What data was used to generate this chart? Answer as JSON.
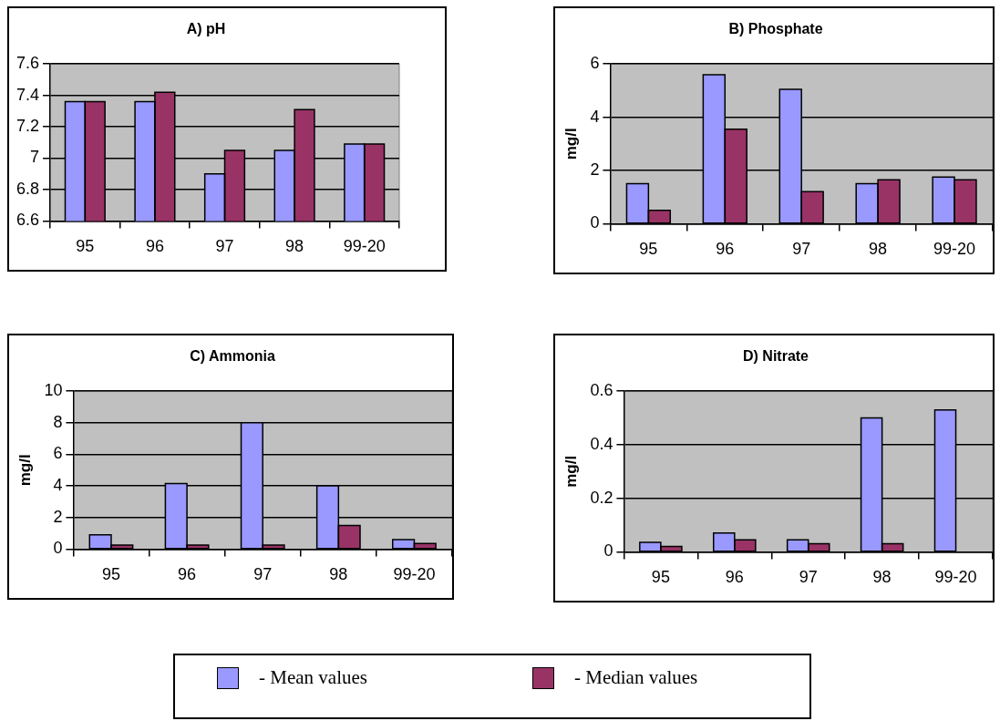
{
  "chart_data": [
    {
      "type": "bar",
      "title": "A) pH",
      "categories": [
        "95",
        "96",
        "97",
        "98",
        "99-20"
      ],
      "ylim": [
        6.6,
        7.6
      ],
      "yticks": [
        6.6,
        6.8,
        7,
        7.2,
        7.4,
        7.6
      ],
      "grid": "y",
      "legend": "bottom",
      "series": [
        {
          "name": "- Mean values",
          "color": "#9999ff",
          "values": [
            7.36,
            7.36,
            6.9,
            7.05,
            7.09
          ]
        },
        {
          "name": "- Median values",
          "color": "#993366",
          "values": [
            7.36,
            7.42,
            7.05,
            7.31,
            7.09
          ]
        }
      ]
    },
    {
      "type": "bar",
      "title": "B) Phosphate",
      "ylabel": "mg/l",
      "categories": [
        "95",
        "96",
        "97",
        "98",
        "99-20"
      ],
      "ylim": [
        0,
        6
      ],
      "yticks": [
        0,
        2,
        4,
        6
      ],
      "grid": "y",
      "series": [
        {
          "color": "#9999ff",
          "values": [
            1.5,
            5.6,
            5.05,
            1.5,
            1.75
          ]
        },
        {
          "color": "#993366",
          "values": [
            0.5,
            3.55,
            1.2,
            1.65,
            1.65
          ]
        }
      ]
    },
    {
      "type": "bar",
      "title": "C) Ammonia",
      "ylabel": "mg/l",
      "categories": [
        "95",
        "96",
        "97",
        "98",
        "99-20"
      ],
      "ylim": [
        0,
        10
      ],
      "yticks": [
        0,
        2,
        4,
        6,
        8,
        10
      ],
      "grid": "y",
      "series": [
        {
          "color": "#9999ff",
          "values": [
            0.9,
            4.15,
            8.0,
            4.0,
            0.6
          ]
        },
        {
          "color": "#993366",
          "values": [
            0.25,
            0.25,
            0.25,
            1.5,
            0.35
          ]
        }
      ]
    },
    {
      "type": "bar",
      "title": "D) Nitrate",
      "ylabel": "mg/l",
      "categories": [
        "95",
        "96",
        "97",
        "98",
        "99-20"
      ],
      "ylim": [
        0,
        0.6
      ],
      "yticks": [
        0,
        0.2,
        0.4,
        0.6
      ],
      "grid": "y",
      "series": [
        {
          "color": "#9999ff",
          "values": [
            0.035,
            0.07,
            0.045,
            0.5,
            0.53
          ]
        },
        {
          "color": "#993366",
          "values": [
            0.02,
            0.045,
            0.03,
            0.03,
            null
          ]
        }
      ]
    }
  ]
}
